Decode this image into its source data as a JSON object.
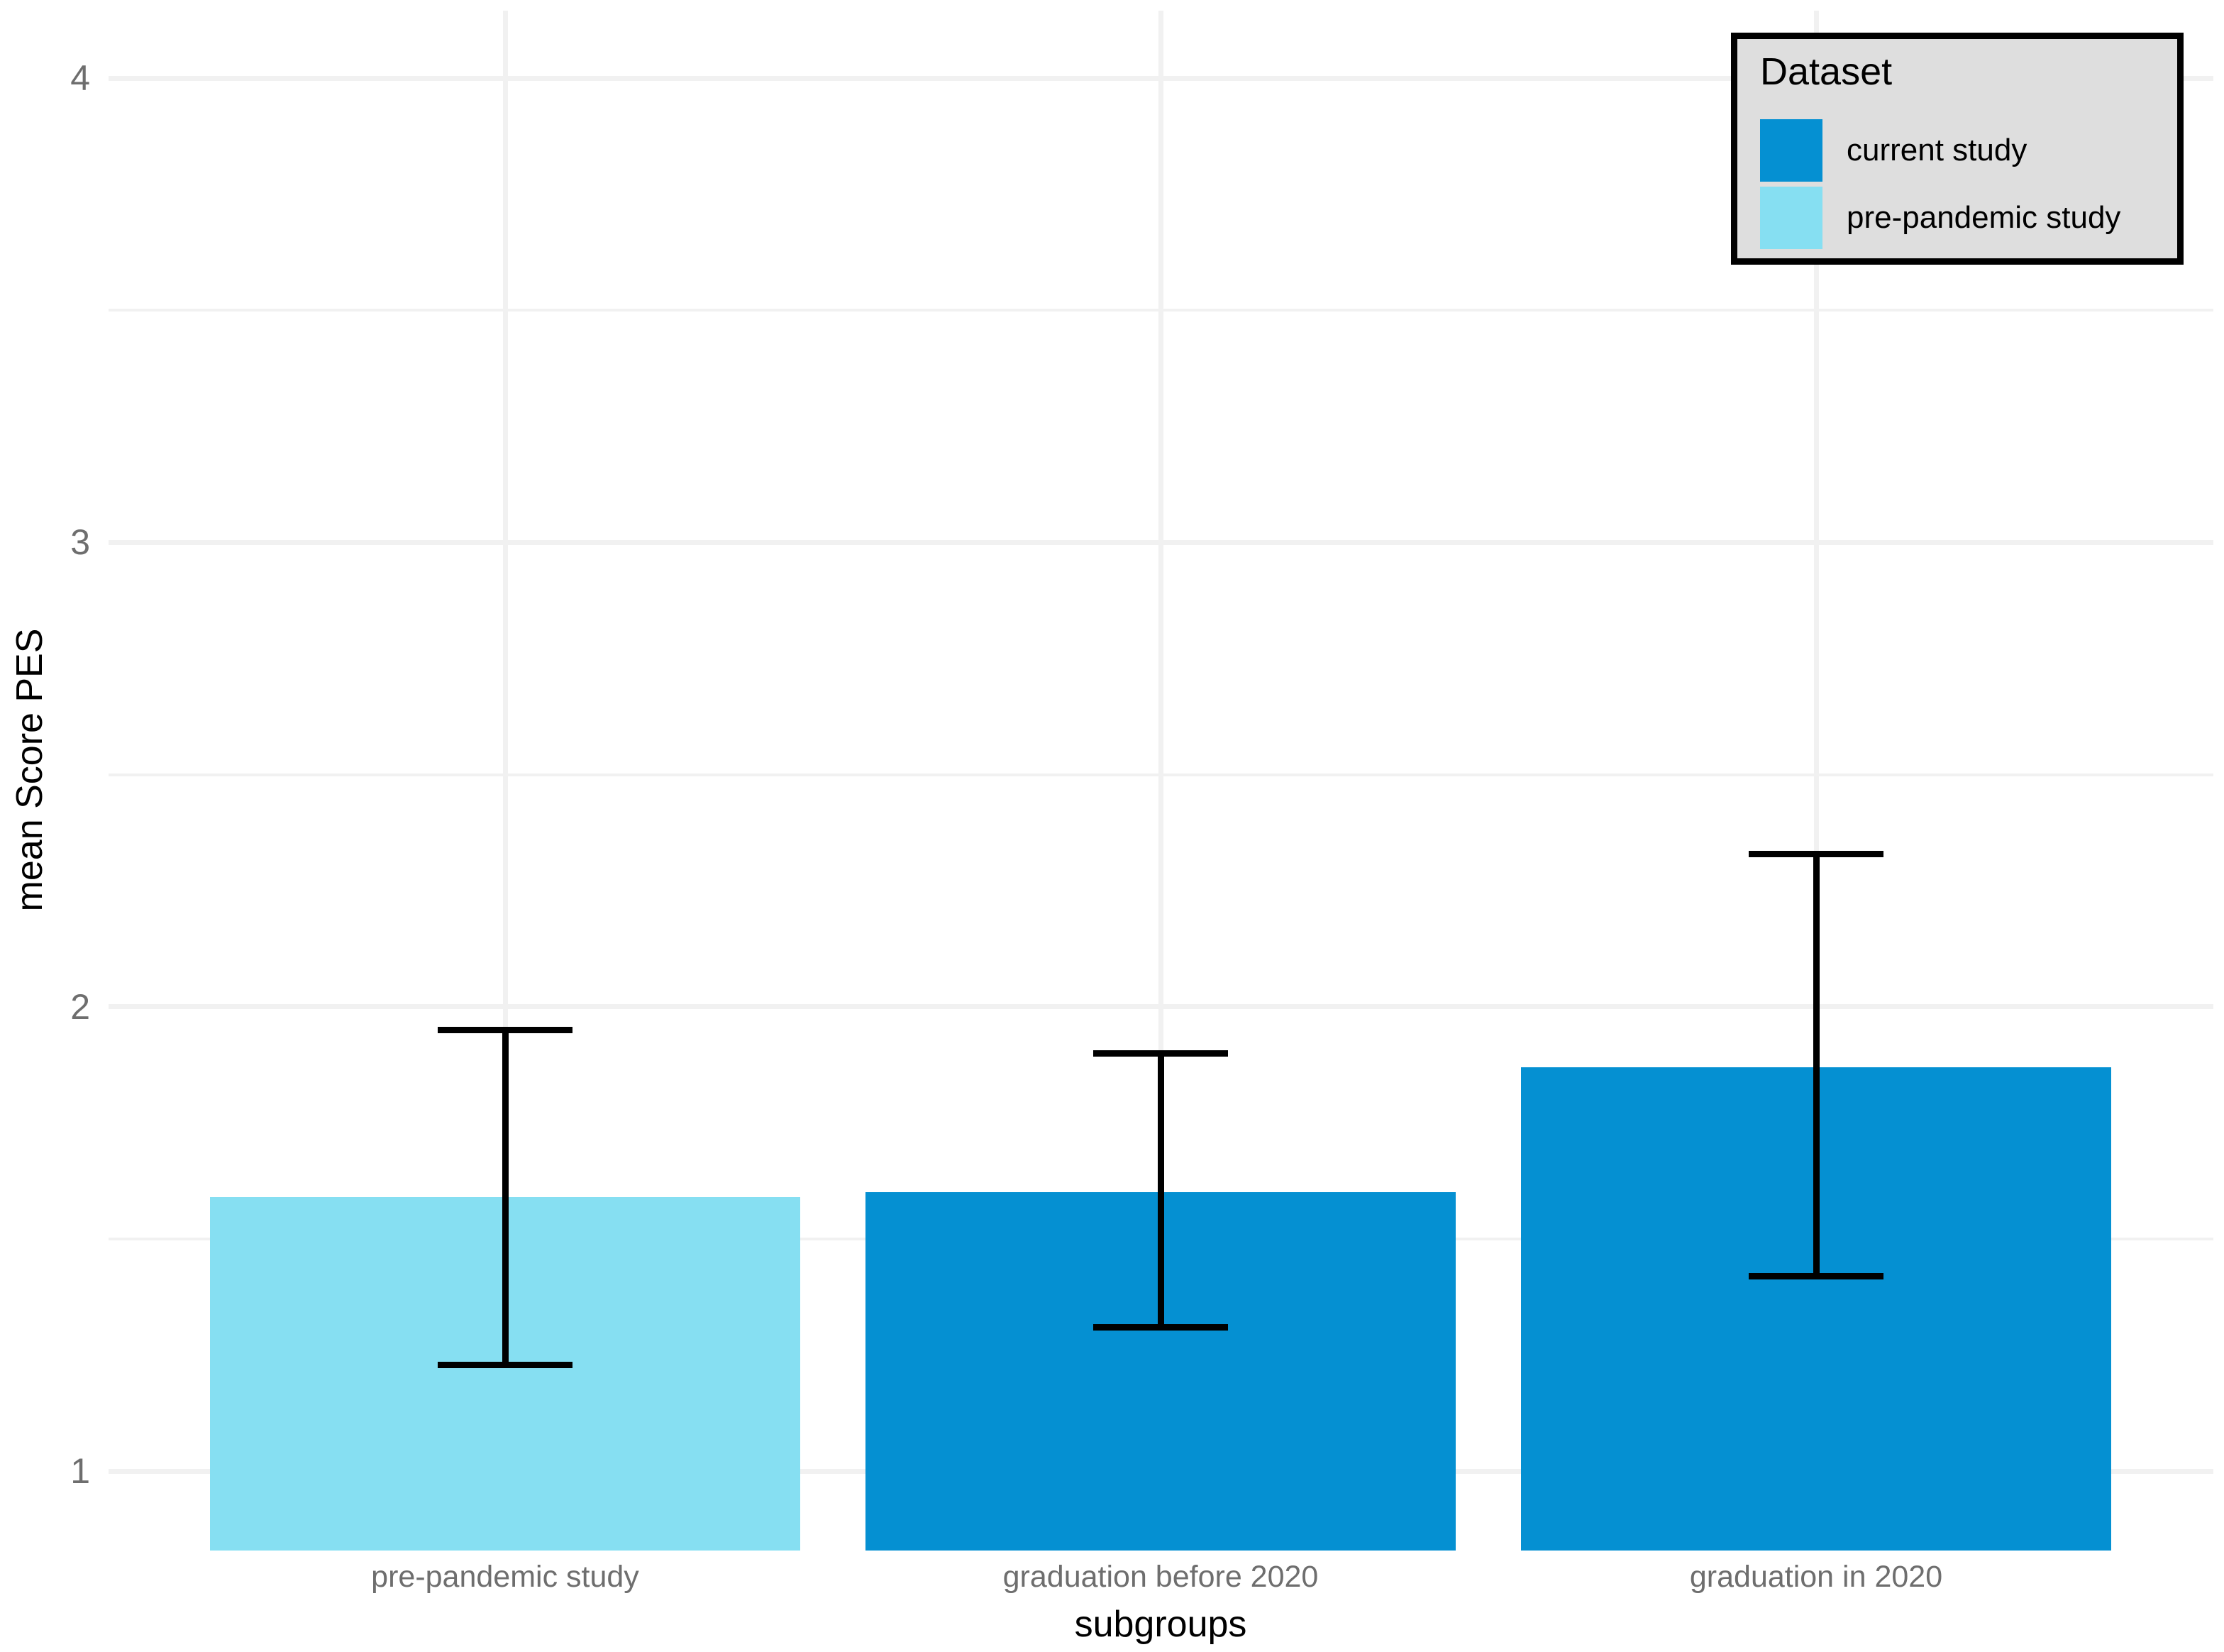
{
  "chart_data": {
    "type": "bar",
    "title": "",
    "xlabel": "subgroups",
    "ylabel": "mean Score PES",
    "categories": [
      "pre-pandemic study",
      "graduation before 2020",
      "graduation in 2020"
    ],
    "y_ticks": [
      1,
      2,
      3,
      4
    ],
    "ylim": [
      0.83,
      4.14
    ],
    "grid": true,
    "legend": {
      "title": "Dataset",
      "position": "top-right-inside",
      "entries": [
        {
          "label": "current study",
          "color": "#0590D2"
        },
        {
          "label": "pre-pandemic study",
          "color": "#86DFF2"
        }
      ]
    },
    "bars": [
      {
        "category": "pre-pandemic study",
        "dataset": "pre-pandemic study",
        "mean": 1.59,
        "ci_low": 1.23,
        "ci_high": 1.95,
        "color": "#86DFF2"
      },
      {
        "category": "graduation before 2020",
        "dataset": "current study",
        "mean": 1.6,
        "ci_low": 1.31,
        "ci_high": 1.9,
        "color": "#0590D2"
      },
      {
        "category": "graduation in 2020",
        "dataset": "current study",
        "mean": 1.87,
        "ci_low": 1.42,
        "ci_high": 2.33,
        "color": "#0590D2"
      }
    ],
    "colors": {
      "current_study": "#0590D2",
      "pre_pandemic_study": "#86DFF2",
      "gridline": "#F1F1F1",
      "axis_text": "#6E6E6E",
      "error_bar": "#000000",
      "legend_background": "#DEDEDE",
      "legend_border": "#000000"
    }
  }
}
